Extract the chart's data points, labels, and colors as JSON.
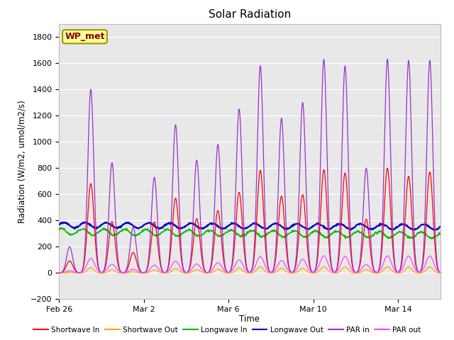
{
  "title": "Solar Radiation",
  "ylabel": "Radiation (W/m2, umol/m2/s)",
  "xlabel": "Time",
  "ylim": [
    -200,
    1900
  ],
  "yticks": [
    -200,
    0,
    200,
    400,
    600,
    800,
    1000,
    1200,
    1400,
    1600,
    1800
  ],
  "xlim_days": [
    0,
    18
  ],
  "x_tick_labels": [
    "Feb 26",
    "Mar 2",
    "Mar 6",
    "Mar 10",
    "Mar 14"
  ],
  "x_tick_positions": [
    0,
    4,
    8,
    12,
    16
  ],
  "bg_color": "#e8e8e8",
  "fig_bg": "#ffffff",
  "series_colors": {
    "sw_in": "#ff0000",
    "sw_out": "#ffa500",
    "lw_in": "#00bb00",
    "lw_out": "#0000cc",
    "par_in": "#9933cc",
    "par_out": "#ff44ff"
  },
  "legend_labels": [
    "Shortwave In",
    "Shortwave Out",
    "Longwave In",
    "Longwave Out",
    "PAR in",
    "PAR out"
  ],
  "legend_colors": [
    "#ff0000",
    "#ffa500",
    "#00bb00",
    "#0000cc",
    "#9933cc",
    "#ff44ff"
  ],
  "wp_met_label": "WP_met",
  "wp_met_bg": "#ffff99",
  "wp_met_border": "#999900",
  "wp_met_text_color": "#880000"
}
